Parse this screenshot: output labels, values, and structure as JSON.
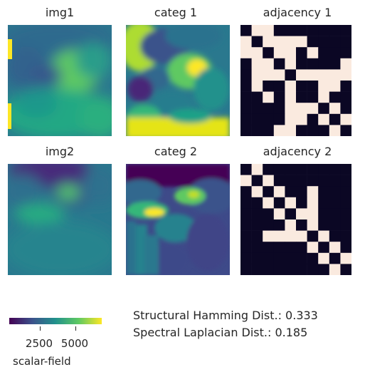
{
  "panels": {
    "img1": "img1",
    "categ1": "categ 1",
    "adj1": "adjacency 1",
    "img2": "img2",
    "categ2": "categ 2",
    "adj2": "adjacency 2"
  },
  "colorbar": {
    "label": "scalar-field",
    "ticks": [
      "2500",
      "5000"
    ],
    "colormap": [
      "#440154",
      "#3b528b",
      "#21918c",
      "#5ec962",
      "#fde725"
    ]
  },
  "metrics": {
    "hamming": "Structural Hamming Dist.: 0.333",
    "laplacian": "Spectral Laplacian Dist.: 0.185"
  },
  "chart_data": [
    {
      "type": "heatmap",
      "title": "adjacency 1",
      "colors": {
        "0": "#0b0724",
        "1": "#faeadf"
      },
      "matrix": [
        [
          0,
          1,
          1,
          0,
          0,
          0,
          0,
          0,
          0,
          0
        ],
        [
          1,
          0,
          1,
          1,
          1,
          1,
          0,
          0,
          0,
          0
        ],
        [
          1,
          1,
          0,
          1,
          1,
          0,
          1,
          0,
          0,
          0
        ],
        [
          0,
          1,
          1,
          0,
          1,
          0,
          0,
          0,
          0,
          1
        ],
        [
          0,
          1,
          1,
          1,
          0,
          1,
          1,
          1,
          1,
          1
        ],
        [
          0,
          1,
          0,
          0,
          1,
          0,
          0,
          1,
          1,
          0
        ],
        [
          0,
          0,
          1,
          0,
          1,
          0,
          0,
          1,
          0,
          0
        ],
        [
          0,
          0,
          0,
          0,
          1,
          1,
          1,
          0,
          1,
          0
        ],
        [
          0,
          0,
          0,
          0,
          1,
          1,
          0,
          1,
          0,
          1
        ],
        [
          0,
          0,
          0,
          1,
          1,
          0,
          0,
          0,
          1,
          0
        ]
      ]
    },
    {
      "type": "heatmap",
      "title": "adjacency 2",
      "colors": {
        "0": "#0b0724",
        "1": "#faeadf"
      },
      "matrix": [
        [
          0,
          1,
          0,
          0,
          0,
          0,
          0,
          0,
          0,
          0
        ],
        [
          1,
          0,
          1,
          0,
          0,
          0,
          0,
          0,
          0,
          0
        ],
        [
          0,
          1,
          0,
          1,
          0,
          0,
          1,
          0,
          0,
          0
        ],
        [
          0,
          0,
          1,
          0,
          1,
          0,
          1,
          0,
          0,
          0
        ],
        [
          0,
          0,
          0,
          1,
          0,
          1,
          1,
          0,
          0,
          0
        ],
        [
          0,
          0,
          0,
          0,
          1,
          0,
          1,
          0,
          0,
          0
        ],
        [
          0,
          0,
          1,
          1,
          1,
          1,
          0,
          1,
          0,
          0
        ],
        [
          0,
          0,
          0,
          0,
          0,
          0,
          1,
          0,
          1,
          0
        ],
        [
          0,
          0,
          0,
          0,
          0,
          0,
          0,
          1,
          0,
          1
        ],
        [
          0,
          0,
          0,
          0,
          0,
          0,
          0,
          0,
          1,
          0
        ]
      ]
    }
  ]
}
